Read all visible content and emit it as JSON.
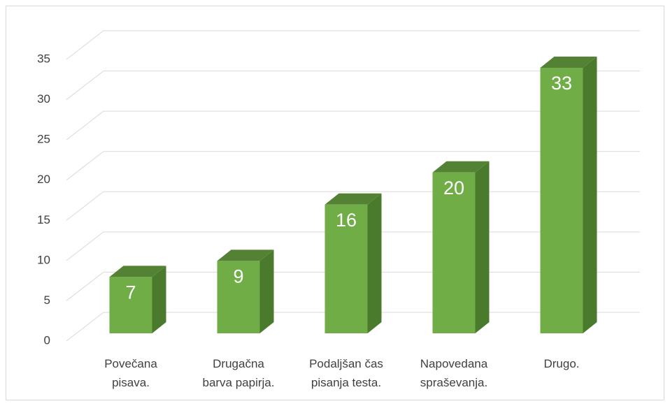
{
  "chart_data": {
    "type": "bar3d",
    "categories": [
      "Povečana\npisava.",
      "Drugačna\nbarva papirja.",
      "Podaljšan čas\npisanja testa.",
      "Napovedana\nspraševanja.",
      "Drugo."
    ],
    "values": [
      7,
      9,
      16,
      20,
      33
    ],
    "color": "#70ad47",
    "ylim": [
      0,
      35
    ],
    "yticks": [
      0,
      5,
      10,
      15,
      20,
      25,
      30,
      35
    ],
    "grid": true
  }
}
